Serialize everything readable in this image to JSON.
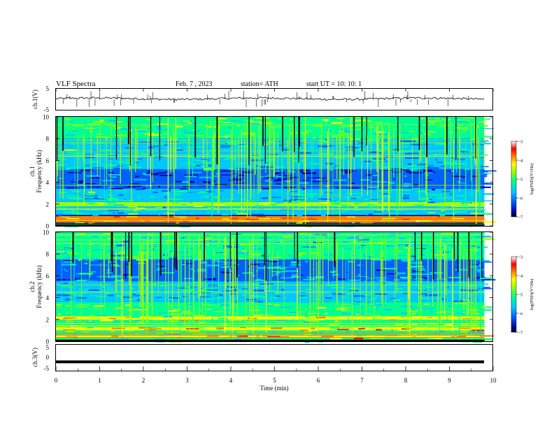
{
  "header": {
    "title": "VLF  Spectra",
    "date": "Feb. 7  , 2023",
    "station": "station= ATH",
    "start": "start  UT  =    10: 10: 1"
  },
  "chart_data": [
    {
      "type": "line",
      "name": "ch1-waveform",
      "ylabel": "ch.1(V)",
      "ylim": [
        -5,
        5
      ],
      "yticks": [
        "5",
        "-5"
      ],
      "xlim": [
        0,
        10
      ],
      "color": "#000000"
    },
    {
      "type": "heatmap",
      "name": "ch1-spectrogram",
      "ylabel": "ch.1\nFrequency (kHz)",
      "ylabel_lines": [
        "ch.1",
        "Frequency (kHz)"
      ],
      "ylim": [
        0,
        10
      ],
      "yticks": [
        "10",
        "8",
        "6",
        "4",
        "2",
        "0"
      ],
      "xlim": [
        0,
        9.8
      ],
      "colorbar": {
        "label": "log(PSD)(V²/Hz)",
        "range": [
          -7,
          -3
        ],
        "ticks": [
          "-3",
          "-4",
          "-5",
          "-6",
          "-7"
        ],
        "colors": [
          "#000000",
          "#0000a0",
          "#0060ff",
          "#00c8ff",
          "#00ff90",
          "#a0ff00",
          "#ffff00",
          "#ff8000",
          "#ff0000",
          "#ffffff"
        ]
      },
      "dominant_bands_khz": [
        {
          "from": 0.0,
          "to": 0.2,
          "level": -5.5
        },
        {
          "from": 0.3,
          "to": 0.9,
          "level": -4.0
        },
        {
          "from": 1.0,
          "to": 1.8,
          "level": -5.7
        },
        {
          "from": 1.8,
          "to": 2.2,
          "level": -5.0
        },
        {
          "from": 2.2,
          "to": 3.4,
          "level": -5.8
        },
        {
          "from": 3.4,
          "to": 5.2,
          "level": -6.6
        },
        {
          "from": 5.2,
          "to": 8.0,
          "level": -5.8
        },
        {
          "from": 8.0,
          "to": 10.0,
          "level": -5.2
        }
      ]
    },
    {
      "type": "heatmap",
      "name": "ch2-spectrogram",
      "ylabel": "ch.2\nFrequency (kHz)",
      "ylabel_lines": [
        "ch.2",
        "Frequency (kHz)"
      ],
      "ylim": [
        0,
        10
      ],
      "yticks": [
        "10",
        "8",
        "6",
        "4",
        "2",
        "0"
      ],
      "xlim": [
        0,
        9.8
      ],
      "colorbar": {
        "label": "log(PSD)(V²/Hz)",
        "range": [
          -7,
          -3
        ],
        "ticks": [
          "-3",
          "-4",
          "-5",
          "-6",
          "-7"
        ],
        "colors": [
          "#000000",
          "#0000a0",
          "#0060ff",
          "#00c8ff",
          "#00ff90",
          "#a0ff00",
          "#ffff00",
          "#ff8000",
          "#ff0000",
          "#ffffff"
        ]
      },
      "dominant_bands_khz": [
        {
          "from": 0.0,
          "to": 0.3,
          "level": -5.5
        },
        {
          "from": 0.3,
          "to": 0.6,
          "level": -4.3
        },
        {
          "from": 0.6,
          "to": 1.0,
          "level": -5.4
        },
        {
          "from": 1.0,
          "to": 1.3,
          "level": -4.2
        },
        {
          "from": 1.3,
          "to": 2.0,
          "level": -5.2
        },
        {
          "from": 2.0,
          "to": 2.3,
          "level": -4.5
        },
        {
          "from": 2.3,
          "to": 3.6,
          "level": -5.2
        },
        {
          "from": 3.6,
          "to": 5.5,
          "level": -5.9
        },
        {
          "from": 5.5,
          "to": 7.5,
          "level": -6.2
        },
        {
          "from": 7.5,
          "to": 10.0,
          "level": -5.6
        }
      ]
    },
    {
      "type": "line",
      "name": "ch3-waveform",
      "ylabel": "ch.3(V)",
      "ylim": [
        -5,
        5
      ],
      "yticks": [
        "5",
        "0",
        "-5"
      ],
      "xlim": [
        0,
        10
      ],
      "xlabel": "Time  (min)",
      "xticks": [
        "0",
        "1",
        "2",
        "3",
        "4",
        "5",
        "6",
        "7",
        "8",
        "9",
        "10"
      ],
      "baseline_value": -1.6,
      "color": "#000000"
    }
  ]
}
